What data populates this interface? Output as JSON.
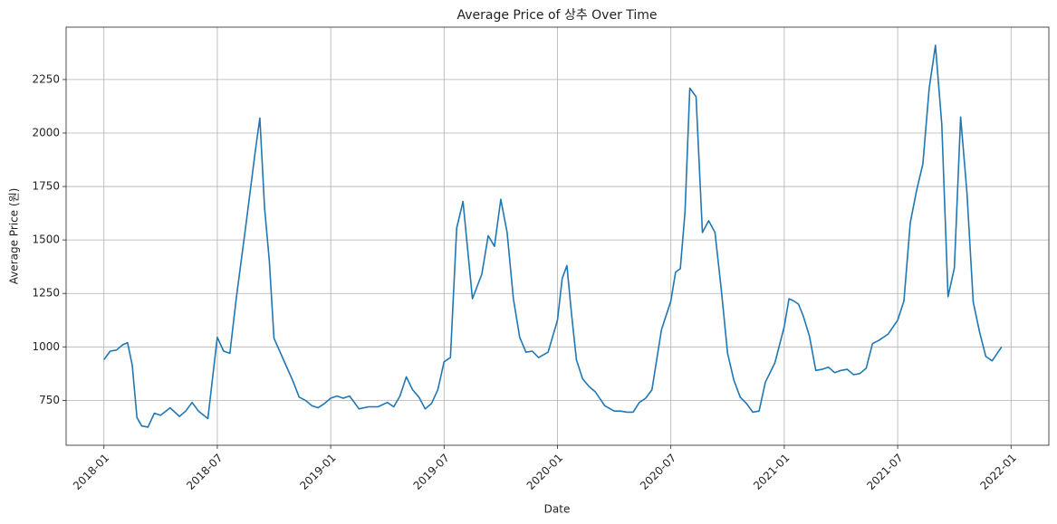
{
  "chart_data": {
    "type": "line",
    "title": "Average Price of 상추 Over Time",
    "xlabel": "Date",
    "ylabel": "Average Price (원)",
    "x": [
      "2018-01",
      "2018-01",
      "2018-01",
      "2018-02",
      "2018-02",
      "2018-02",
      "2018-02",
      "2018-03",
      "2018-03",
      "2018-03",
      "2018-04",
      "2018-04",
      "2018-05",
      "2018-05",
      "2018-05",
      "2018-06",
      "2018-06",
      "2018-07",
      "2018-07",
      "2018-07",
      "2018-08",
      "2018-08",
      "2018-09",
      "2018-09",
      "2018-09",
      "2018-09",
      "2018-10",
      "2018-10",
      "2018-11",
      "2018-11",
      "2018-11",
      "2018-12",
      "2018-12",
      "2018-12",
      "2019-01",
      "2019-01",
      "2019-01",
      "2019-02",
      "2019-02",
      "2019-03",
      "2019-03",
      "2019-04",
      "2019-04",
      "2019-04",
      "2019-05",
      "2019-05",
      "2019-05",
      "2019-06",
      "2019-06",
      "2019-06",
      "2019-07",
      "2019-07",
      "2019-07",
      "2019-08",
      "2019-08",
      "2019-09",
      "2019-09",
      "2019-09",
      "2019-10",
      "2019-10",
      "2019-10",
      "2019-11",
      "2019-11",
      "2019-11",
      "2019-12",
      "2019-12",
      "2020-01",
      "2020-01",
      "2020-01",
      "2020-01",
      "2020-02",
      "2020-02",
      "2020-02",
      "2020-03",
      "2020-03",
      "2020-04",
      "2020-04",
      "2020-04",
      "2020-05",
      "2020-05",
      "2020-05",
      "2020-06",
      "2020-06",
      "2020-07",
      "2020-07",
      "2020-07",
      "2020-07",
      "2020-08",
      "2020-08",
      "2020-08",
      "2020-09",
      "2020-09",
      "2020-09",
      "2020-10",
      "2020-10",
      "2020-10",
      "2020-11",
      "2020-11",
      "2020-11",
      "2020-12",
      "2020-12",
      "2021-01",
      "2021-01",
      "2021-01",
      "2021-01",
      "2021-02",
      "2021-02",
      "2021-02",
      "2021-03",
      "2021-03",
      "2021-03",
      "2021-04",
      "2021-04",
      "2021-04",
      "2021-05",
      "2021-05",
      "2021-05",
      "2021-06",
      "2021-06",
      "2021-07",
      "2021-07",
      "2021-07",
      "2021-08",
      "2021-08",
      "2021-08",
      "2021-09",
      "2021-09",
      "2021-09",
      "2021-10",
      "2021-10",
      "2021-10",
      "2021-11",
      "2021-11",
      "2021-11",
      "2021-12",
      "2021-12"
    ],
    "series": [
      {
        "name": "Average Price",
        "color": "#1f77b4",
        "values": [
          940,
          980,
          985,
          1010,
          1020,
          915,
          670,
          630,
          625,
          690,
          680,
          715,
          675,
          700,
          740,
          700,
          665,
          1045,
          980,
          970,
          1225,
          1560,
          1910,
          2070,
          1650,
          1405,
          1040,
          940,
          840,
          765,
          750,
          725,
          715,
          735,
          760,
          770,
          760,
          770,
          710,
          720,
          720,
          740,
          720,
          770,
          860,
          800,
          765,
          710,
          735,
          800,
          930,
          950,
          1555,
          1680,
          1225,
          1340,
          1520,
          1470,
          1690,
          1535,
          1225,
          1045,
          975,
          980,
          950,
          975,
          1125,
          1320,
          1380,
          1150,
          940,
          850,
          815,
          790,
          725,
          700,
          700,
          695,
          695,
          740,
          760,
          800,
          1080,
          1215,
          1350,
          1365,
          1630,
          2210,
          2170,
          1535,
          1590,
          1535,
          1270,
          970,
          845,
          765,
          735,
          695,
          700,
          835,
          925,
          1095,
          1225,
          1215,
          1200,
          1145,
          1050,
          890,
          895,
          905,
          880,
          890,
          895,
          870,
          875,
          900,
          1015,
          1030,
          1060,
          1125,
          1215,
          1580,
          1730,
          1855,
          2210,
          2410,
          2040,
          1235,
          1370,
          2075,
          1720,
          1210,
          1070,
          955,
          935,
          1000
        ]
      }
    ],
    "xlim": [
      "2017-11",
      "2022-03"
    ],
    "xticks": [
      "2018-01",
      "2018-07",
      "2019-01",
      "2019-07",
      "2020-01",
      "2020-07",
      "2021-01",
      "2021-07",
      "2022-01"
    ],
    "ylim": [
      540,
      2495
    ],
    "yticks": [
      750,
      1000,
      1250,
      1500,
      1750,
      2000,
      2250
    ],
    "grid": true
  }
}
